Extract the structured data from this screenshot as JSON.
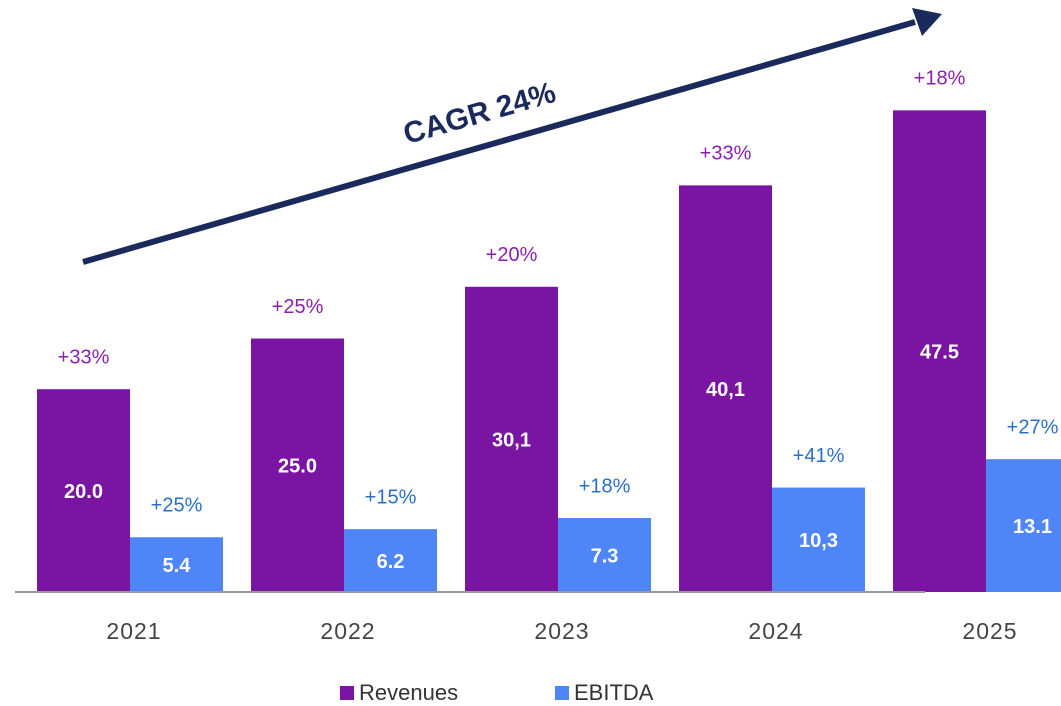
{
  "chart_data": {
    "type": "bar",
    "annotation": "CAGR 24%",
    "categories": [
      "2021",
      "2022",
      "2023",
      "2024",
      "2025"
    ],
    "series": [
      {
        "name": "Revenues",
        "color": "#7a14a3",
        "label_color": "#8a1fb0",
        "values": [
          20.0,
          25.0,
          30.1,
          40.1,
          47.5
        ],
        "value_labels": [
          "20.0",
          "25.0",
          "30,1",
          "40,1",
          "47.5"
        ],
        "growth_labels": [
          "+33%",
          "+25%",
          "+20%",
          "+33%",
          "+18%"
        ]
      },
      {
        "name": "EBITDA",
        "color": "#4f86f7",
        "label_color": "#2a6fc9",
        "values": [
          5.4,
          6.2,
          7.3,
          10.3,
          13.1
        ],
        "value_labels": [
          "5.4",
          "6.2",
          "7.3",
          "10,3",
          "13.1"
        ],
        "growth_labels": [
          "+25%",
          "+15%",
          "+18%",
          "+41%",
          "+27%"
        ]
      }
    ],
    "ylim": [
      0,
      50
    ]
  }
}
